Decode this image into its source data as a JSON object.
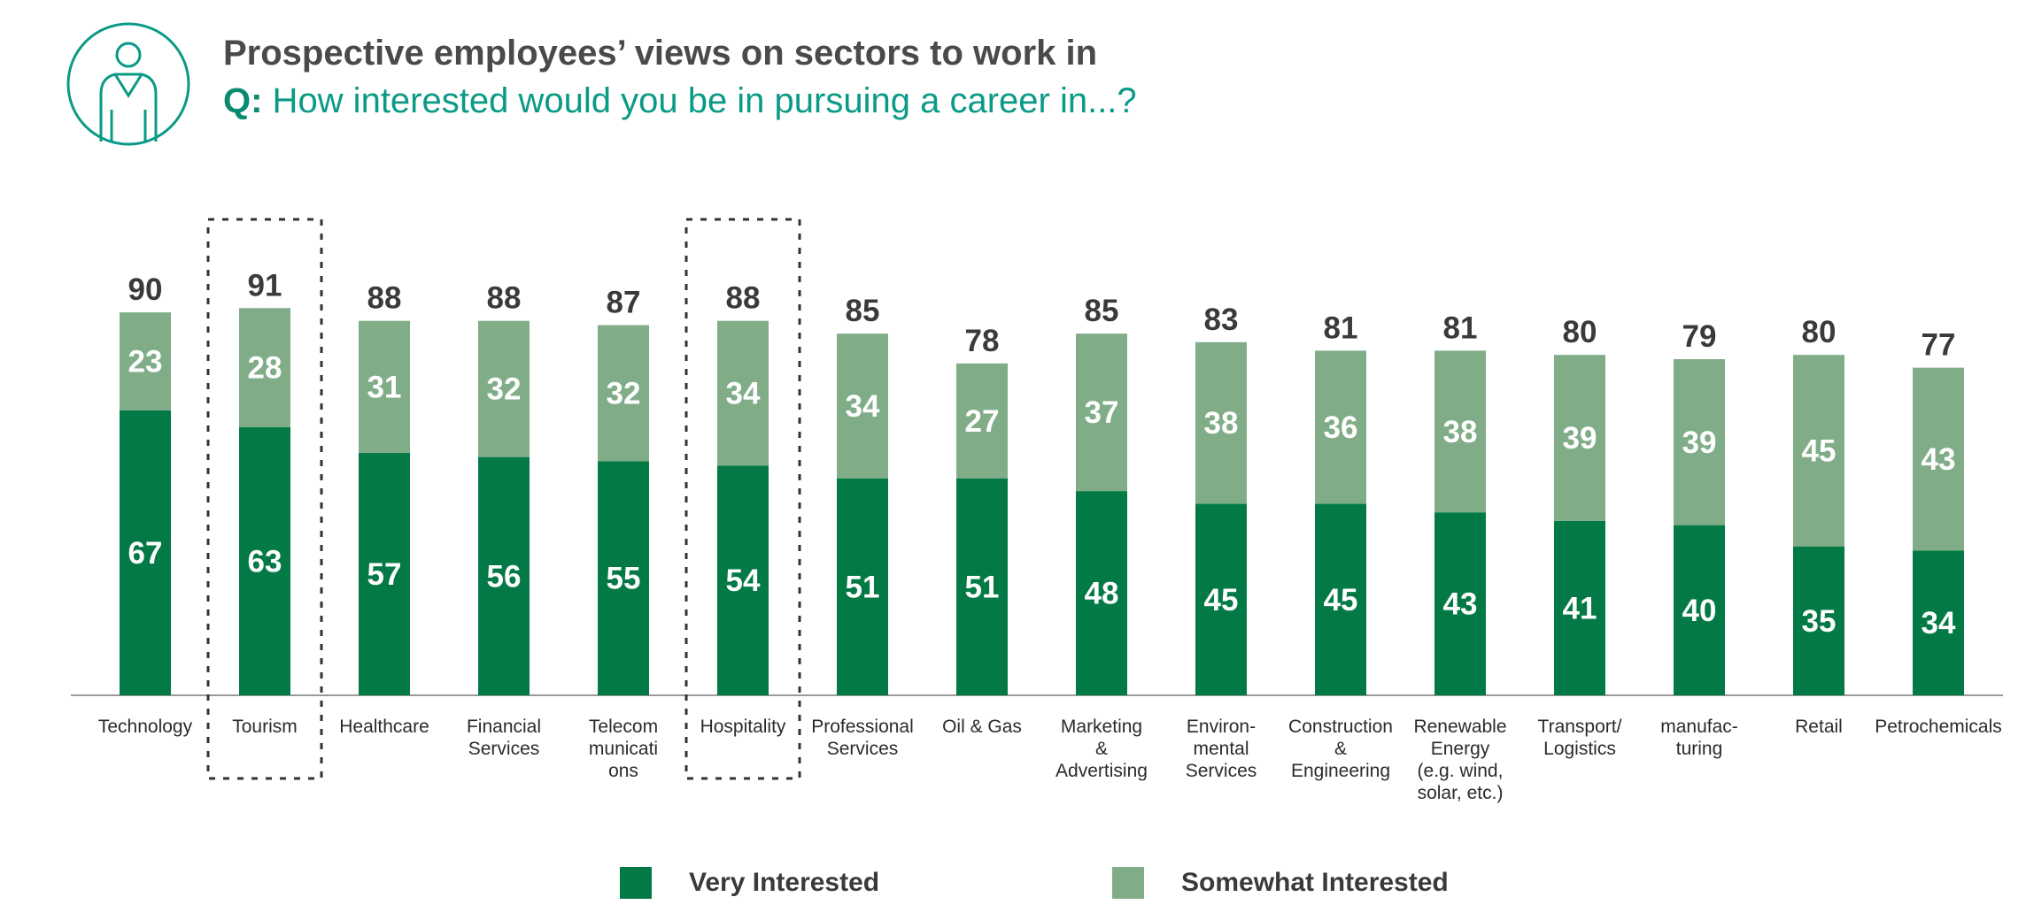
{
  "header": {
    "title": "Prospective employees’ views on sectors to work in",
    "question_prefix": "Q:",
    "question_text": " How interested would you be in pursuing a career in...?",
    "icon": "person-icon"
  },
  "colors": {
    "very": "#037a45",
    "somewhat": "#80ad88",
    "icon": "#0a9a86",
    "title": "#4a4a4a",
    "question": "#0a9a86"
  },
  "chart_data": {
    "type": "bar",
    "stacked": true,
    "categories": [
      [
        "Technology"
      ],
      [
        "Tourism"
      ],
      [
        "Healthcare"
      ],
      [
        "Financial",
        "Services"
      ],
      [
        "Telecom",
        "municati",
        "ons"
      ],
      [
        "Hospitality"
      ],
      [
        "Professional",
        "Services"
      ],
      [
        "Oil & Gas"
      ],
      [
        "Marketing",
        "&",
        "Advertising"
      ],
      [
        "Environ-",
        "mental",
        "Services"
      ],
      [
        "Construction",
        "&",
        "Engineering"
      ],
      [
        "Renewable",
        "Energy",
        "(e.g. wind,",
        "solar, etc.)"
      ],
      [
        "Transport/",
        "Logistics"
      ],
      [
        "manufac-",
        "turing"
      ],
      [
        "Retail"
      ],
      [
        "Petrochemicals"
      ]
    ],
    "series": [
      {
        "name": "Very Interested",
        "values": [
          67,
          63,
          57,
          56,
          55,
          54,
          51,
          51,
          48,
          45,
          45,
          43,
          41,
          40,
          35,
          34
        ]
      },
      {
        "name": "Somewhat Interested",
        "values": [
          23,
          28,
          31,
          32,
          32,
          34,
          34,
          27,
          37,
          38,
          36,
          38,
          39,
          39,
          45,
          43
        ]
      }
    ],
    "totals": [
      90,
      91,
      88,
      88,
      87,
      88,
      85,
      78,
      85,
      83,
      81,
      81,
      80,
      79,
      80,
      77
    ],
    "highlighted": [
      "Tourism",
      "Hospitality"
    ],
    "ylim": [
      0,
      110
    ],
    "grid": false,
    "legend_position": "bottom"
  }
}
